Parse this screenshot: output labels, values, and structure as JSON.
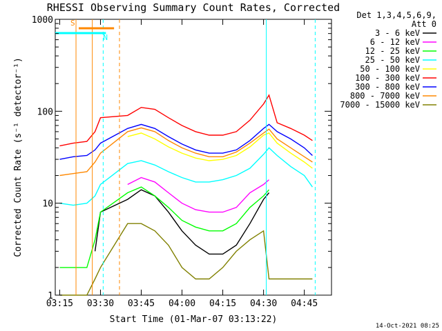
{
  "chart_data": {
    "type": "line",
    "title": "RHESSI Observing Summary Count Rates, Corrected",
    "xlabel": "Start Time (01-Mar-07 03:13:22)",
    "ylabel": "Corrected Count Rate (s⁻¹ detector⁻¹)",
    "yscale": "log",
    "ylim": [
      1,
      1000
    ],
    "xlim": [
      "03:13:22",
      "04:55:00"
    ],
    "x_ticks": [
      "03:15",
      "03:30",
      "03:45",
      "04:00",
      "04:15",
      "04:30",
      "04:45"
    ],
    "y_ticks": [
      "1",
      "10",
      "100",
      "1000"
    ],
    "legend_header": [
      "Det 1,3,4,5,6,9,",
      "Att 0"
    ],
    "legend_position": "right",
    "footer_timestamp": "14-Oct-2021 08:25",
    "x": [
      "03:15",
      "03:20",
      "03:25",
      "03:28",
      "03:30",
      "03:40",
      "03:45",
      "03:50",
      "03:55",
      "04:00",
      "04:05",
      "04:10",
      "04:15",
      "04:20",
      "04:25",
      "04:30",
      "04:32",
      "04:35",
      "04:40",
      "04:45",
      "04:48"
    ],
    "series": [
      {
        "name": "3 - 6 keV",
        "color": "#000000",
        "values": [
          null,
          null,
          null,
          3,
          8,
          11,
          14,
          12,
          8,
          5,
          3.5,
          2.8,
          2.8,
          3.5,
          6,
          11,
          13,
          null,
          null,
          null,
          null
        ]
      },
      {
        "name": "6 - 12 keV",
        "color": "#ff00ff",
        "values": [
          null,
          null,
          null,
          null,
          null,
          16,
          19,
          17,
          13,
          10,
          8.5,
          8,
          8,
          9,
          13,
          16,
          18,
          null,
          null,
          null,
          null
        ]
      },
      {
        "name": "12 - 25 keV",
        "color": "#00ff00",
        "values": [
          2,
          2,
          2,
          4,
          8,
          13,
          15,
          12,
          9,
          6.5,
          5.5,
          5,
          5,
          6,
          9,
          12,
          14,
          null,
          null,
          null,
          null
        ]
      },
      {
        "name": "25 - 50 keV",
        "color": "#00ffff",
        "values": [
          10,
          9.5,
          10,
          12,
          16,
          27,
          29,
          26,
          22,
          19,
          17,
          17,
          18,
          20,
          24,
          34,
          40,
          33,
          25,
          20,
          15
        ]
      },
      {
        "name": "50 - 100 keV",
        "color": "#ffff00",
        "values": [
          null,
          null,
          null,
          null,
          null,
          53,
          58,
          50,
          41,
          35,
          31,
          29,
          30,
          33,
          41,
          55,
          58,
          45,
          35,
          28,
          24
        ]
      },
      {
        "name": "100 - 300 keV",
        "color": "#ff0000",
        "values": [
          42,
          45,
          47,
          60,
          85,
          90,
          110,
          105,
          85,
          70,
          60,
          55,
          55,
          60,
          80,
          120,
          150,
          75,
          65,
          55,
          48
        ]
      },
      {
        "name": "300 - 800 keV",
        "color": "#0000ff",
        "values": [
          30,
          32,
          33,
          38,
          45,
          65,
          72,
          65,
          53,
          44,
          38,
          35,
          35,
          38,
          48,
          65,
          72,
          60,
          50,
          40,
          33
        ]
      },
      {
        "name": "800 - 7000 keV",
        "color": "#ff8800",
        "values": [
          20,
          21,
          22,
          28,
          35,
          60,
          66,
          60,
          48,
          40,
          35,
          32,
          32,
          36,
          45,
          58,
          64,
          50,
          40,
          32,
          28
        ]
      },
      {
        "name": "7000 - 15000 keV",
        "color": "#808000",
        "values": [
          1,
          1,
          1,
          1.5,
          2,
          6,
          6,
          5,
          3.5,
          2,
          1.5,
          1.5,
          2,
          3,
          4,
          5,
          1.5,
          1.5,
          1.5,
          1.5,
          1.5
        ]
      }
    ],
    "annotations": [
      {
        "label": "S",
        "color": "#ff8800",
        "start": "03:22",
        "end": "03:35"
      },
      {
        "label": "N",
        "color": "#00ffff",
        "start": "03:13:22",
        "end": "03:32"
      }
    ],
    "event_lines": [
      {
        "time": "03:21",
        "color": "#ff8800",
        "style": "solid"
      },
      {
        "time": "03:27",
        "color": "#ff8800",
        "style": "solid"
      },
      {
        "time": "03:37",
        "color": "#ff8800",
        "style": "dashed"
      },
      {
        "time": "03:31",
        "color": "#00ffff",
        "style": "dashed"
      },
      {
        "time": "04:31",
        "color": "#00ffff",
        "style": "solid"
      },
      {
        "time": "04:49",
        "color": "#00ffff",
        "style": "dashed"
      }
    ]
  }
}
